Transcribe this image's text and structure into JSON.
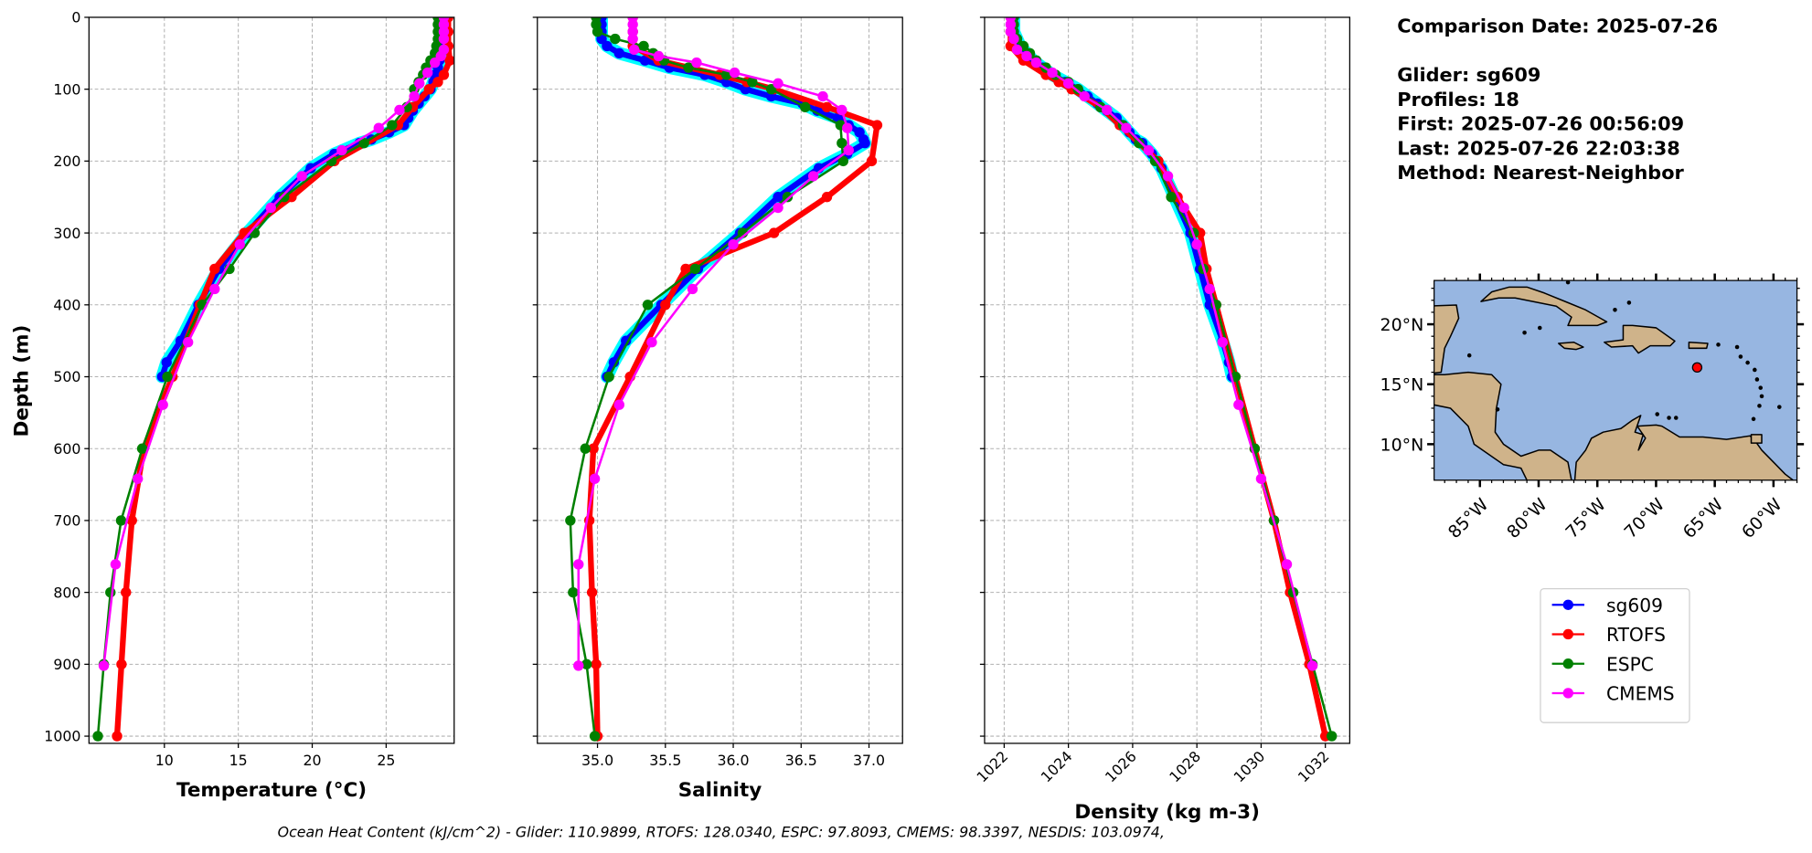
{
  "info": {
    "lines": [
      "Comparison Date: 2025-07-26",
      "",
      "Glider: sg609",
      "Profiles: 18",
      "First: 2025-07-26 00:56:09",
      "Last: 2025-07-26 22:03:38",
      "Method: Nearest-Neighbor"
    ]
  },
  "footer": "Ocean Heat Content (kJ/cm^2) - Glider: 110.9899,  RTOFS: 128.0340,  ESPC: 97.8093,  CMEMS: 98.3397,  NESDIS: 103.0974,",
  "colors": {
    "sg609": "#0000ff",
    "sg609_profiles": "#00ffff",
    "RTOFS": "#ff0000",
    "ESPC": "#008000",
    "CMEMS": "#ff00ff",
    "ocean": "#97b6e1",
    "land": "#cfb38a"
  },
  "legend": {
    "placement": "below-map",
    "entries": [
      {
        "name": "sg609",
        "color": "#0000ff"
      },
      {
        "name": "RTOFS",
        "color": "#ff0000"
      },
      {
        "name": "ESPC",
        "color": "#008000"
      },
      {
        "name": "CMEMS",
        "color": "#ff00ff"
      }
    ]
  },
  "depths": {
    "sg609": [
      0,
      10,
      20,
      30,
      40,
      50,
      60,
      70,
      80,
      90,
      100,
      110,
      120,
      130,
      140,
      150,
      160,
      170,
      175,
      190,
      210,
      250,
      300,
      350,
      400,
      450,
      480,
      500
    ],
    "RTOFS": [
      0,
      20,
      40,
      60,
      80,
      90,
      100,
      125,
      150,
      200,
      250,
      300,
      350,
      400,
      500,
      600,
      700,
      800,
      900,
      1000
    ],
    "ESPC": [
      0,
      10,
      20,
      30,
      40,
      50,
      60,
      70,
      80,
      90,
      100,
      125,
      150,
      175,
      200,
      250,
      300,
      350,
      400,
      500,
      600,
      700,
      800,
      900,
      1000
    ],
    "CMEMS": [
      0,
      10,
      20,
      30,
      45,
      54,
      63,
      77,
      92,
      110,
      129,
      154,
      185,
      221,
      265,
      316,
      378,
      452,
      539,
      642,
      761,
      902
    ]
  },
  "chart_data": [
    {
      "type": "line",
      "variable": "temperature",
      "xlabel": "Temperature (°C)",
      "ylabel": "Depth (m)",
      "xlim": [
        4.9,
        29.6
      ],
      "ylim": [
        1010,
        0
      ],
      "xticks": [
        10,
        15,
        20,
        25
      ],
      "yticks": [
        0,
        100,
        200,
        300,
        400,
        500,
        600,
        700,
        800,
        900,
        1000
      ],
      "grid": true,
      "series": [
        {
          "name": "sg609",
          "values": [
            28.8,
            28.8,
            28.8,
            28.8,
            28.8,
            28.7,
            28.6,
            28.5,
            28.3,
            28.2,
            28.0,
            27.6,
            27.2,
            26.8,
            26.5,
            26.2,
            25.2,
            24.0,
            23.2,
            21.5,
            19.9,
            17.8,
            15.6,
            13.7,
            12.3,
            11.1,
            10.15,
            9.85
          ]
        },
        {
          "name": "RTOFS",
          "values": [
            29.2,
            29.2,
            29.2,
            29.3,
            28.9,
            28.5,
            27.9,
            26.8,
            25.8,
            21.5,
            18.6,
            15.4,
            13.4,
            12.4,
            10.55,
            8.6,
            7.8,
            7.4,
            7.1,
            6.8
          ]
        },
        {
          "name": "ESPC",
          "values": [
            28.5,
            28.5,
            28.5,
            28.5,
            28.4,
            28.3,
            28.0,
            27.7,
            27.5,
            27.2,
            26.9,
            26.4,
            25.4,
            23.5,
            21.3,
            18.1,
            16.1,
            14.4,
            12.56,
            10.2,
            8.5,
            7.07,
            6.35,
            5.9,
            5.5
          ]
        },
        {
          "name": "CMEMS",
          "values": [
            28.9,
            28.9,
            28.9,
            28.9,
            28.9,
            28.7,
            28.3,
            27.8,
            27.25,
            26.9,
            25.9,
            24.5,
            22.0,
            19.3,
            17.2,
            15.1,
            13.4,
            11.6,
            9.9,
            8.2,
            6.7,
            5.9
          ]
        }
      ]
    },
    {
      "type": "line",
      "variable": "salinity",
      "xlabel": "Salinity",
      "xlim": [
        34.557,
        37.247
      ],
      "ylim": [
        1010,
        0
      ],
      "xticks": [
        "35.0",
        "35.5",
        "36.0",
        "36.5",
        "37.0"
      ],
      "yticks": [
        0,
        100,
        200,
        300,
        400,
        500,
        600,
        700,
        800,
        900,
        1000
      ],
      "grid": true,
      "series": [
        {
          "name": "sg609",
          "values": [
            35.03,
            35.03,
            35.03,
            35.03,
            35.07,
            35.16,
            35.35,
            35.53,
            35.79,
            35.95,
            36.09,
            36.28,
            36.51,
            36.62,
            36.77,
            36.85,
            36.93,
            36.96,
            36.97,
            36.84,
            36.63,
            36.33,
            36.05,
            35.74,
            35.47,
            35.21,
            35.12,
            35.07
          ]
        },
        {
          "name": "RTOFS",
          "values": [
            35.26,
            35.26,
            35.26,
            35.45,
            35.9,
            36.1,
            36.3,
            36.69,
            37.06,
            37.02,
            36.69,
            36.3,
            35.65,
            35.5,
            35.24,
            34.97,
            34.94,
            34.96,
            34.99,
            35.0
          ]
        },
        {
          "name": "ESPC",
          "values": [
            34.99,
            34.99,
            35.0,
            35.13,
            35.34,
            35.41,
            35.49,
            35.67,
            35.95,
            36.14,
            36.28,
            36.53,
            36.79,
            36.8,
            36.81,
            36.4,
            36.07,
            35.72,
            35.37,
            35.085,
            34.91,
            34.8,
            34.82,
            34.92,
            34.98
          ]
        },
        {
          "name": "CMEMS",
          "values": [
            35.26,
            35.26,
            35.26,
            35.26,
            35.27,
            35.45,
            35.73,
            36.01,
            36.33,
            36.66,
            36.8,
            36.84,
            36.85,
            36.59,
            36.33,
            36.0,
            35.7,
            35.4,
            35.16,
            34.98,
            34.86,
            34.86
          ]
        }
      ]
    },
    {
      "type": "line",
      "variable": "density",
      "xlabel": "Density (kg m-3)",
      "xlim": [
        1021.39,
        1032.76
      ],
      "ylim": [
        1010,
        0
      ],
      "xticks": [
        1022,
        1024,
        1026,
        1028,
        1030,
        1032
      ],
      "yticks": [
        0,
        100,
        200,
        300,
        400,
        500,
        600,
        700,
        800,
        900,
        1000
      ],
      "grid": true,
      "series": [
        {
          "name": "sg609",
          "values": [
            1022.3,
            1022.3,
            1022.3,
            1022.4,
            1022.5,
            1022.7,
            1022.9,
            1023.2,
            1023.5,
            1023.9,
            1024.3,
            1024.6,
            1024.9,
            1025.2,
            1025.5,
            1025.7,
            1025.9,
            1026.1,
            1026.3,
            1026.6,
            1026.9,
            1027.3,
            1027.8,
            1028.1,
            1028.4,
            1028.8,
            1029.0,
            1029.1
          ]
        },
        {
          "name": "RTOFS",
          "values": [
            1022.2,
            1022.2,
            1022.2,
            1022.6,
            1023.3,
            1023.7,
            1024.1,
            1025.0,
            1025.6,
            1026.8,
            1027.4,
            1028.1,
            1028.3,
            1028.6,
            1029.2,
            1029.8,
            1030.4,
            1030.9,
            1031.5,
            1032.0
          ]
        },
        {
          "name": "ESPC",
          "values": [
            1022.3,
            1022.3,
            1022.3,
            1022.4,
            1022.6,
            1022.8,
            1023.0,
            1023.3,
            1023.6,
            1024.0,
            1024.3,
            1025.0,
            1025.7,
            1026.2,
            1026.7,
            1027.2,
            1027.9,
            1028.2,
            1028.6,
            1029.2,
            1029.8,
            1030.4,
            1031.0,
            1031.6,
            1032.2
          ]
        },
        {
          "name": "CMEMS",
          "values": [
            1022.2,
            1022.2,
            1022.2,
            1022.3,
            1022.4,
            1022.7,
            1023.0,
            1023.5,
            1024.0,
            1024.5,
            1025.2,
            1025.8,
            1026.5,
            1027.1,
            1027.6,
            1028.0,
            1028.4,
            1028.8,
            1029.3,
            1030.0,
            1030.8,
            1031.6
          ]
        }
      ]
    },
    {
      "type": "map",
      "extent_lon": [
        -88.9,
        -58.0
      ],
      "extent_lat": [
        7.0,
        23.65
      ],
      "lon_ticks": [
        {
          "v": -85,
          "label": "85°W"
        },
        {
          "v": -80,
          "label": "80°W"
        },
        {
          "v": -75,
          "label": "75°W"
        },
        {
          "v": -70,
          "label": "70°W"
        },
        {
          "v": -65,
          "label": "65°W"
        },
        {
          "v": -60,
          "label": "60°W"
        }
      ],
      "lat_ticks": [
        {
          "v": 20,
          "label": "20°N"
        },
        {
          "v": 15,
          "label": "15°N"
        },
        {
          "v": 10,
          "label": "10°N"
        }
      ],
      "glider_position": {
        "lon": -66.5,
        "lat": 16.4,
        "color": "#ff0000"
      }
    }
  ]
}
